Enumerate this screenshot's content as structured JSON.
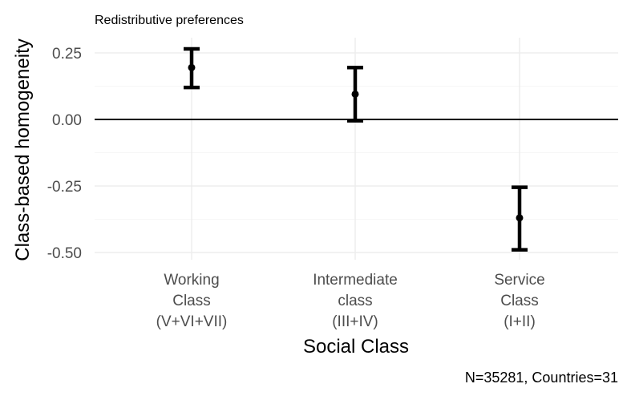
{
  "chart_data": {
    "type": "errorbar",
    "subtitle": "Redistributive preferences",
    "xlabel": "Social Class",
    "ylabel": "Class-based homogeneity",
    "caption": "N=35281, Countries=31",
    "ylim": [
      -0.55,
      0.3
    ],
    "yticks": [
      "0.25",
      "0.00",
      "-0.25",
      "-0.50"
    ],
    "ytick_values": [
      0.25,
      0.0,
      -0.25,
      -0.5
    ],
    "reference_line": 0,
    "grid": true,
    "categories": [
      [
        "Working",
        "Class",
        "(V+VI+VII)"
      ],
      [
        "Intermediate",
        "class",
        "(III+IV)"
      ],
      [
        "Service",
        "Class",
        "(I+II)"
      ]
    ],
    "points": [
      {
        "estimate": 0.195,
        "lower": 0.12,
        "upper": 0.265
      },
      {
        "estimate": 0.095,
        "lower": -0.005,
        "upper": 0.195
      },
      {
        "estimate": -0.37,
        "lower": -0.49,
        "upper": -0.255
      }
    ]
  }
}
